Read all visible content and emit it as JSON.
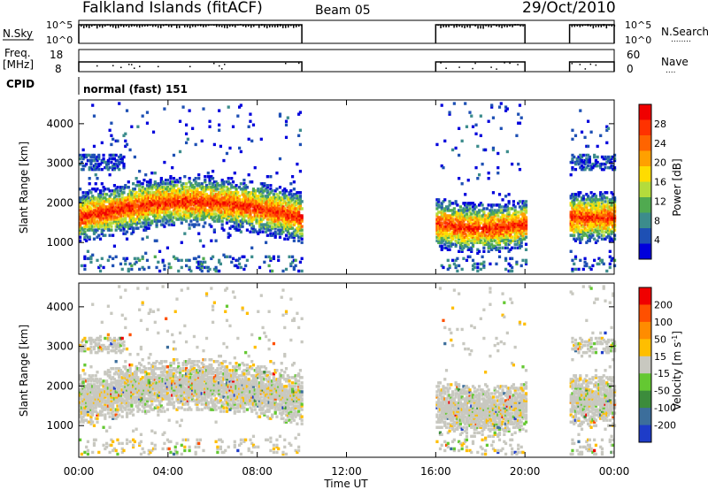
{
  "header": {
    "station": "Falkland Islands (fitACF)",
    "beam": "Beam 05",
    "date": "29/Oct/2010"
  },
  "strips": {
    "nsky": {
      "label": "N.Sky",
      "left_ticks": [
        "10^5",
        "10^0"
      ],
      "right_ticks": [
        "10^5",
        "10^0"
      ],
      "right_label": "N.Search",
      "right_label_dots": "........"
    },
    "freq": {
      "label_line1": "Freq.",
      "label_line2": "[MHz]",
      "left_ticks": [
        "18",
        "8"
      ],
      "right_ticks": [
        "60",
        "0"
      ],
      "right_label": "Nave",
      "right_label_dots": "...."
    },
    "cpid": {
      "label": "CPID",
      "mode_text": "normal (fast) 151"
    }
  },
  "chart_data": [
    {
      "type": "heatmap",
      "panel": "power",
      "ylabel": "Slant Range [km]",
      "ylim": [
        200,
        4600
      ],
      "yticks": [
        1000,
        2000,
        3000,
        4000
      ],
      "xlim": [
        0,
        24
      ],
      "colorbar": {
        "label": "Power [dB]",
        "ticks": [
          "28",
          "24",
          "20",
          "16",
          "12",
          "8",
          "4"
        ],
        "colors": [
          "#0000dc",
          "#1e50b4",
          "#3c8c8c",
          "#50aa50",
          "#b4dc3c",
          "#ffdc00",
          "#ffa000",
          "#ff6400",
          "#ff3200",
          "#f00000"
        ]
      },
      "data_windows_hours": [
        [
          0,
          10
        ],
        [
          16,
          20
        ],
        [
          22,
          24
        ]
      ],
      "main_echo_band": {
        "range_km": [
          1300,
          2600
        ],
        "strongest_power_db": "24-30 near 1400-1800 km"
      }
    },
    {
      "type": "heatmap",
      "panel": "velocity",
      "ylabel": "Slant Range [km]",
      "ylim": [
        200,
        4600
      ],
      "yticks": [
        1000,
        2000,
        3000,
        4000
      ],
      "xlim": [
        0,
        24
      ],
      "colorbar": {
        "label": "Velocity [m s-1]",
        "ticks": [
          "200",
          "100",
          "50",
          "15",
          "-15",
          "-50",
          "-100",
          "-200"
        ],
        "colors": [
          "#1e3cc8",
          "#3c6e9b",
          "#3c8c3c",
          "#64c832",
          "#c8c8c0",
          "#ffbe00",
          "#ff8c00",
          "#ff5000",
          "#f00000"
        ]
      },
      "data_windows_hours": [
        [
          0,
          10
        ],
        [
          16,
          20
        ],
        [
          22,
          24
        ]
      ],
      "dominant_velocity": "-15 to 15 (grey)"
    }
  ],
  "time_axis": {
    "label": "Time UT",
    "ticks": [
      "00:00",
      "04:00",
      "08:00",
      "12:00",
      "16:00",
      "20:00",
      "00:00"
    ]
  }
}
